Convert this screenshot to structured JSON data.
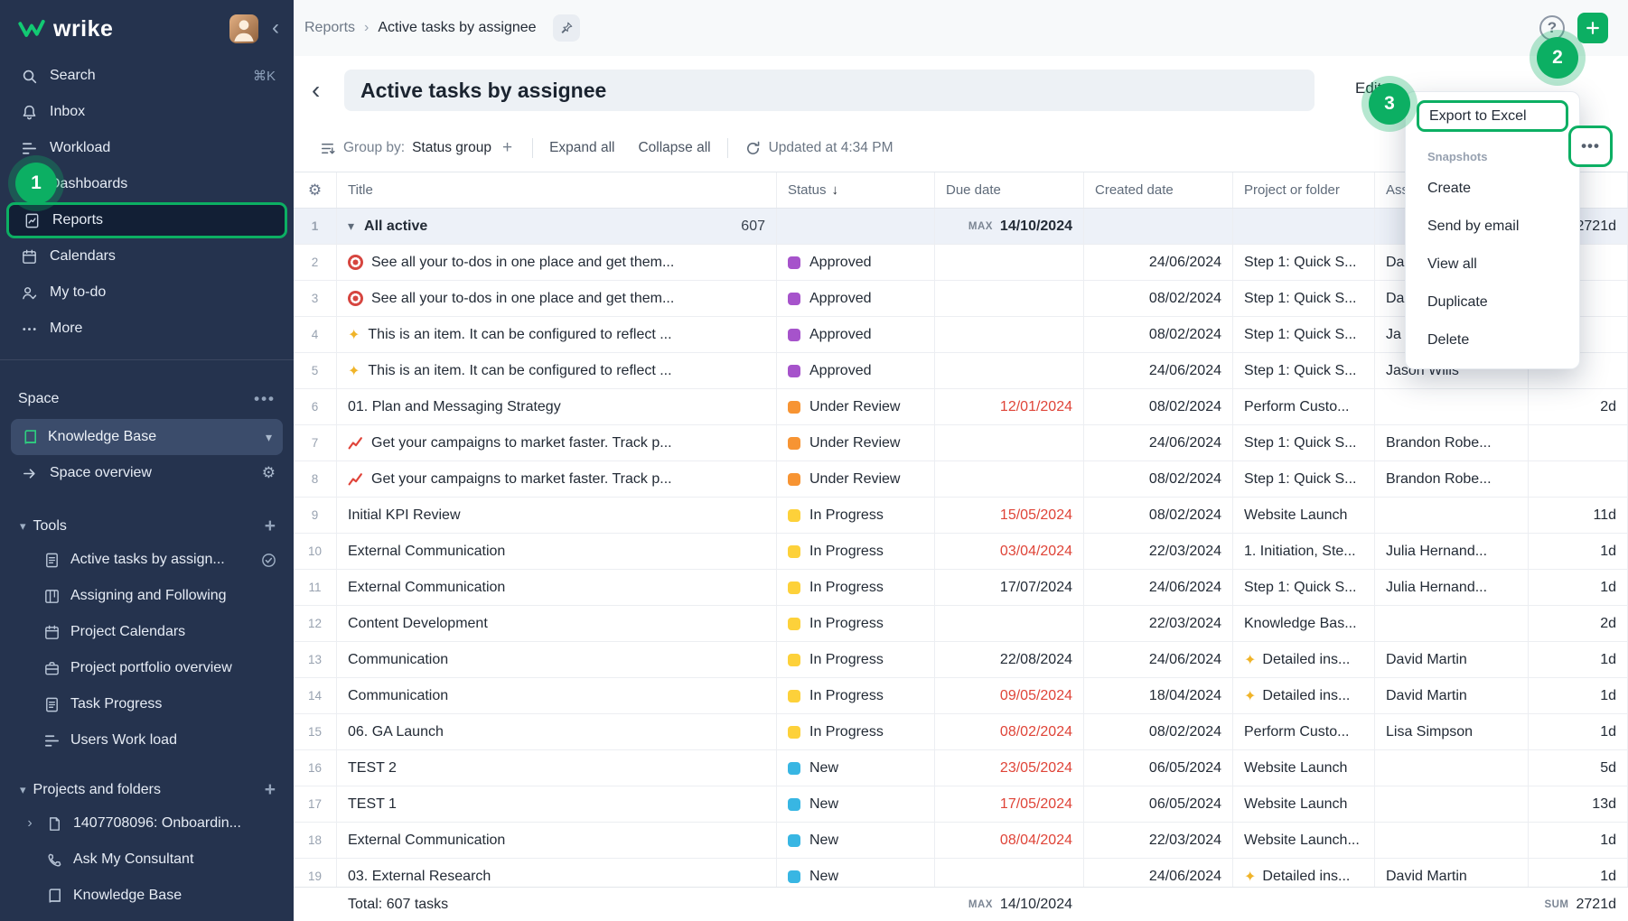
{
  "colors": {
    "green": "#0caf63",
    "sidebar_bg": "#25334e",
    "overdue": "#df4438",
    "status": {
      "Approved": "#a653cb",
      "Under Review": "#f79433",
      "In Progress": "#fdd13a",
      "New": "#38b6e3"
    }
  },
  "steps": {
    "one": "1",
    "two": "2",
    "three": "3"
  },
  "sidebar": {
    "logo_text": "wrike",
    "nav": [
      {
        "icon": "search",
        "label": "Search",
        "shortcut": "⌘K"
      },
      {
        "icon": "bell",
        "label": "Inbox"
      },
      {
        "icon": "workload",
        "label": "Workload"
      },
      {
        "icon": "dashboards",
        "label": "Dashboards"
      },
      {
        "icon": "reports",
        "label": "Reports",
        "highlighted": true
      },
      {
        "icon": "calendar",
        "label": "Calendars"
      },
      {
        "icon": "todo",
        "label": "My to-do"
      },
      {
        "icon": "more",
        "label": "More"
      }
    ],
    "space_label": "Space",
    "space_name": "Knowledge Base",
    "space_overview_label": "Space overview",
    "tools_label": "Tools",
    "tools": [
      {
        "icon": "report-doc",
        "label": "Active tasks by assign...",
        "trailing": "check-circle"
      },
      {
        "icon": "board",
        "label": "Assigning and Following"
      },
      {
        "icon": "calendar",
        "label": "Project Calendars"
      },
      {
        "icon": "portfolio",
        "label": "Project portfolio overview"
      },
      {
        "icon": "report-doc",
        "label": "Task Progress"
      },
      {
        "icon": "workload",
        "label": "Users Work load"
      }
    ],
    "projects_label": "Projects and folders",
    "projects": [
      {
        "icon": "folder-doc",
        "label": "1407708096: Onboardin...",
        "chevron": true
      },
      {
        "icon": "phone",
        "label": "Ask My Consultant"
      },
      {
        "icon": "book",
        "label": "Knowledge Base"
      }
    ]
  },
  "topbar": {
    "breadcrumb_parent": "Reports",
    "breadcrumb_separator": "›",
    "breadcrumb_current": "Active tasks by assignee",
    "help_label": "?"
  },
  "titlebar": {
    "title": "Active tasks by assignee",
    "edit_label": "Edit",
    "more_label": "•••"
  },
  "toolbar": {
    "group_by_label": "Group by:",
    "group_by_value": "Status group",
    "add_group_label": "+",
    "expand_all": "Expand all",
    "collapse_all": "Collapse all",
    "updated": "Updated at 4:34 PM",
    "more_label": "•••"
  },
  "menu": {
    "export_item": "Export to Excel",
    "section": "Snapshots",
    "items": [
      "Create",
      "Send by email",
      "View all",
      "Duplicate",
      "Delete"
    ]
  },
  "table": {
    "headers": {
      "title": "Title",
      "status": "Status",
      "sort": "↓",
      "due": "Due date",
      "created": "Created date",
      "project": "Project or folder",
      "assignee": "Assignee",
      "duration": ""
    },
    "group_row": {
      "num": "1",
      "title": "All active",
      "count": "607",
      "max_label": "MAX",
      "due": "14/10/2024",
      "duration": "2721d"
    },
    "rows": [
      {
        "num": "2",
        "icon": "target",
        "title": "See all your to-dos in one place and get them...",
        "status": "Approved",
        "due": "",
        "due_red": false,
        "created": "24/06/2024",
        "project": "Step 1: Quick S...",
        "project_icon": "",
        "assignee": "Da",
        "duration": ""
      },
      {
        "num": "3",
        "icon": "target",
        "title": "See all your to-dos in one place and get them...",
        "status": "Approved",
        "due": "",
        "due_red": false,
        "created": "08/02/2024",
        "project": "Step 1: Quick S...",
        "project_icon": "",
        "assignee": "Da",
        "duration": ""
      },
      {
        "num": "4",
        "icon": "sparkles",
        "title": "This is an item. It can be configured to reflect ...",
        "status": "Approved",
        "due": "",
        "due_red": false,
        "created": "08/02/2024",
        "project": "Step 1: Quick S...",
        "project_icon": "",
        "assignee": "Ja",
        "duration": ""
      },
      {
        "num": "5",
        "icon": "sparkles",
        "title": "This is an item. It can be configured to reflect ...",
        "status": "Approved",
        "due": "",
        "due_red": false,
        "created": "24/06/2024",
        "project": "Step 1: Quick S...",
        "project_icon": "",
        "assignee": "Jason Wills",
        "duration": ""
      },
      {
        "num": "6",
        "icon": "",
        "title": "01. Plan and Messaging Strategy",
        "status": "Under Review",
        "due": "12/01/2024",
        "due_red": true,
        "created": "08/02/2024",
        "project": "Perform Custo...",
        "project_icon": "",
        "assignee": "",
        "duration": "2d"
      },
      {
        "num": "7",
        "icon": "chart",
        "title": "Get your campaigns to market faster. Track p...",
        "status": "Under Review",
        "due": "",
        "due_red": false,
        "created": "24/06/2024",
        "project": "Step 1: Quick S...",
        "project_icon": "",
        "assignee": "Brandon Robe...",
        "duration": ""
      },
      {
        "num": "8",
        "icon": "chart",
        "title": "Get your campaigns to market faster. Track p...",
        "status": "Under Review",
        "due": "",
        "due_red": false,
        "created": "08/02/2024",
        "project": "Step 1: Quick S...",
        "project_icon": "",
        "assignee": "Brandon Robe...",
        "duration": ""
      },
      {
        "num": "9",
        "icon": "",
        "title": "Initial KPI Review",
        "status": "In Progress",
        "due": "15/05/2024",
        "due_red": true,
        "created": "08/02/2024",
        "project": "Website Launch",
        "project_icon": "",
        "assignee": "",
        "duration": "11d"
      },
      {
        "num": "10",
        "icon": "",
        "title": "External Communication",
        "status": "In Progress",
        "due": "03/04/2024",
        "due_red": true,
        "created": "22/03/2024",
        "project": "1. Initiation, Ste...",
        "project_icon": "",
        "assignee": "Julia Hernand...",
        "duration": "1d"
      },
      {
        "num": "11",
        "icon": "",
        "title": "External Communication",
        "status": "In Progress",
        "due": "17/07/2024",
        "due_red": false,
        "created": "24/06/2024",
        "project": "Step 1: Quick S...",
        "project_icon": "",
        "assignee": "Julia Hernand...",
        "duration": "1d"
      },
      {
        "num": "12",
        "icon": "",
        "title": "Content Development",
        "status": "In Progress",
        "due": "",
        "due_red": false,
        "created": "22/03/2024",
        "project": "Knowledge Bas...",
        "project_icon": "",
        "assignee": "",
        "duration": "2d"
      },
      {
        "num": "13",
        "icon": "",
        "title": "Communication",
        "status": "In Progress",
        "due": "22/08/2024",
        "due_red": false,
        "created": "24/06/2024",
        "project": "Detailed ins...",
        "project_icon": "sparkles",
        "assignee": "David Martin",
        "duration": "1d"
      },
      {
        "num": "14",
        "icon": "",
        "title": "Communication",
        "status": "In Progress",
        "due": "09/05/2024",
        "due_red": true,
        "created": "18/04/2024",
        "project": "Detailed ins...",
        "project_icon": "sparkles",
        "assignee": "David Martin",
        "duration": "1d"
      },
      {
        "num": "15",
        "icon": "",
        "title": "06. GA Launch",
        "status": "In Progress",
        "due": "08/02/2024",
        "due_red": true,
        "created": "08/02/2024",
        "project": "Perform Custo...",
        "project_icon": "",
        "assignee": "Lisa Simpson",
        "duration": "1d"
      },
      {
        "num": "16",
        "icon": "",
        "title": "TEST 2",
        "status": "New",
        "due": "23/05/2024",
        "due_red": true,
        "created": "06/05/2024",
        "project": "Website Launch",
        "project_icon": "",
        "assignee": "",
        "duration": "5d"
      },
      {
        "num": "17",
        "icon": "",
        "title": "TEST 1",
        "status": "New",
        "due": "17/05/2024",
        "due_red": true,
        "created": "06/05/2024",
        "project": "Website Launch",
        "project_icon": "",
        "assignee": "",
        "duration": "13d"
      },
      {
        "num": "18",
        "icon": "",
        "title": "External Communication",
        "status": "New",
        "due": "08/04/2024",
        "due_red": true,
        "created": "22/03/2024",
        "project": "Website Launch...",
        "project_icon": "",
        "assignee": "",
        "duration": "1d"
      },
      {
        "num": "19",
        "icon": "",
        "title": "03. External Research",
        "status": "New",
        "due": "",
        "due_red": false,
        "created": "24/06/2024",
        "project": "Detailed ins...",
        "project_icon": "sparkles",
        "assignee": "David Martin",
        "duration": "1d"
      }
    ],
    "footer": {
      "total": "Total: 607 tasks",
      "max_label": "MAX",
      "max_value": "14/10/2024",
      "sum_label": "SUM",
      "sum_value": "2721d"
    }
  }
}
